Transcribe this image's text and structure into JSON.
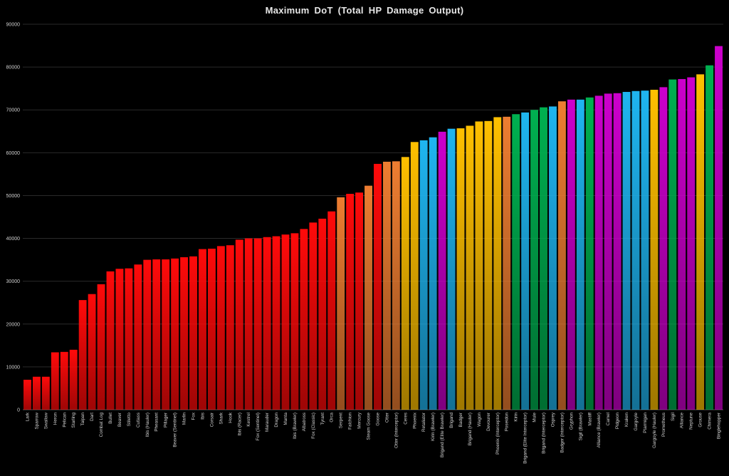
{
  "chart_data": {
    "type": "bar",
    "title": "Maximum  DoT  (Total  HP  Damage  Output)",
    "xlabel": "",
    "ylabel": "",
    "ylim": [
      0,
      90000
    ],
    "yticks": [
      0,
      10000,
      20000,
      30000,
      40000,
      50000,
      60000,
      70000,
      80000,
      90000
    ],
    "grid": true,
    "legend": "none",
    "colors": {
      "red": "#ff0a0a",
      "orange": "#ed7d31",
      "yellow": "#ffc000",
      "blue": "#1fb5f0",
      "purple": "#cc00cc",
      "green": "#00b050"
    },
    "categories": [
      "Lark",
      "Sparrow",
      "Swallow",
      "Heron",
      "Pelican",
      "Starling",
      "Taipan",
      "Dart",
      "Combat Log",
      "Bullet",
      "Beaver",
      "Stiletto",
      "Cutlass",
      "Ibis (Hauler)",
      "Pheasant",
      "Pillager",
      "Beaver (Sentinel)",
      "Marlin",
      "Fox",
      "Ibis",
      "Corsair",
      "Shark",
      "Hook",
      "Ibis (Racer)",
      "Kestrel",
      "Fox (Sentinel)",
      "Marauder",
      "Dragon",
      "Manta",
      "Ibis (Brawler)",
      "Albatross",
      "Fox (Classic)",
      "Tyrant",
      "Orca",
      "Serpent",
      "Falchion",
      "Mercury",
      "Steam Goose",
      "Goose",
      "Otter",
      "Otter (Interceptor)",
      "Ceres",
      "Phoenix",
      "Retaliator",
      "Kirin (Brawler)",
      "Brigand (Elite Brawler)",
      "Brigand",
      "Badger",
      "Brigand (Hauler)",
      "Wagon",
      "Devourer",
      "Phoenix (Interceptor)",
      "Poseidon",
      "Kirin",
      "Brigand (Elite Interceptor)",
      "Mule",
      "Brigand (Interceptor)",
      "Osprey",
      "Badger (Interceptor)",
      "Gryphon",
      "Sigil (Brawler)",
      "Mastiff",
      "Alliance (Brawler)",
      "Camel",
      "Pidgeon",
      "Kraken",
      "Gargoyle",
      "Ptarmigan",
      "Gargoyle (Hauler)",
      "Prometheus",
      "Sigil",
      "Alliance",
      "Neptune",
      "Grouse",
      "Chimera",
      "Binglehopper"
    ],
    "values": [
      7000,
      7700,
      7700,
      13400,
      13500,
      14000,
      25600,
      27000,
      29300,
      32300,
      32900,
      33000,
      33900,
      35000,
      35100,
      35100,
      35300,
      35600,
      35800,
      37500,
      37600,
      38200,
      38400,
      39700,
      40000,
      40000,
      40300,
      40500,
      40900,
      41200,
      42200,
      43700,
      44600,
      46300,
      49600,
      50400,
      50700,
      52300,
      57400,
      57900,
      58000,
      59000,
      62500,
      62900,
      63600,
      64900,
      65600,
      65700,
      66300,
      67300,
      67400,
      68300,
      68400,
      69000,
      69400,
      70000,
      70600,
      70800,
      72000,
      72400,
      72400,
      72900,
      73300,
      73800,
      73900,
      74200,
      74400,
      74500,
      74700,
      75300,
      77100,
      77200,
      77600,
      78300,
      80400,
      84900
    ],
    "bar_colors": [
      "red",
      "red",
      "red",
      "red",
      "red",
      "red",
      "red",
      "red",
      "red",
      "red",
      "red",
      "red",
      "red",
      "red",
      "red",
      "red",
      "red",
      "red",
      "red",
      "red",
      "red",
      "red",
      "red",
      "red",
      "red",
      "red",
      "red",
      "red",
      "red",
      "red",
      "red",
      "red",
      "red",
      "red",
      "orange",
      "red",
      "red",
      "orange",
      "red",
      "orange",
      "orange",
      "yellow",
      "yellow",
      "blue",
      "blue",
      "purple",
      "blue",
      "yellow",
      "yellow",
      "yellow",
      "yellow",
      "yellow",
      "orange",
      "green",
      "blue",
      "green",
      "green",
      "blue",
      "orange",
      "purple",
      "blue",
      "green",
      "purple",
      "purple",
      "purple",
      "blue",
      "blue",
      "blue",
      "yellow",
      "purple",
      "green",
      "purple",
      "purple",
      "yellow",
      "green",
      "purple"
    ]
  }
}
